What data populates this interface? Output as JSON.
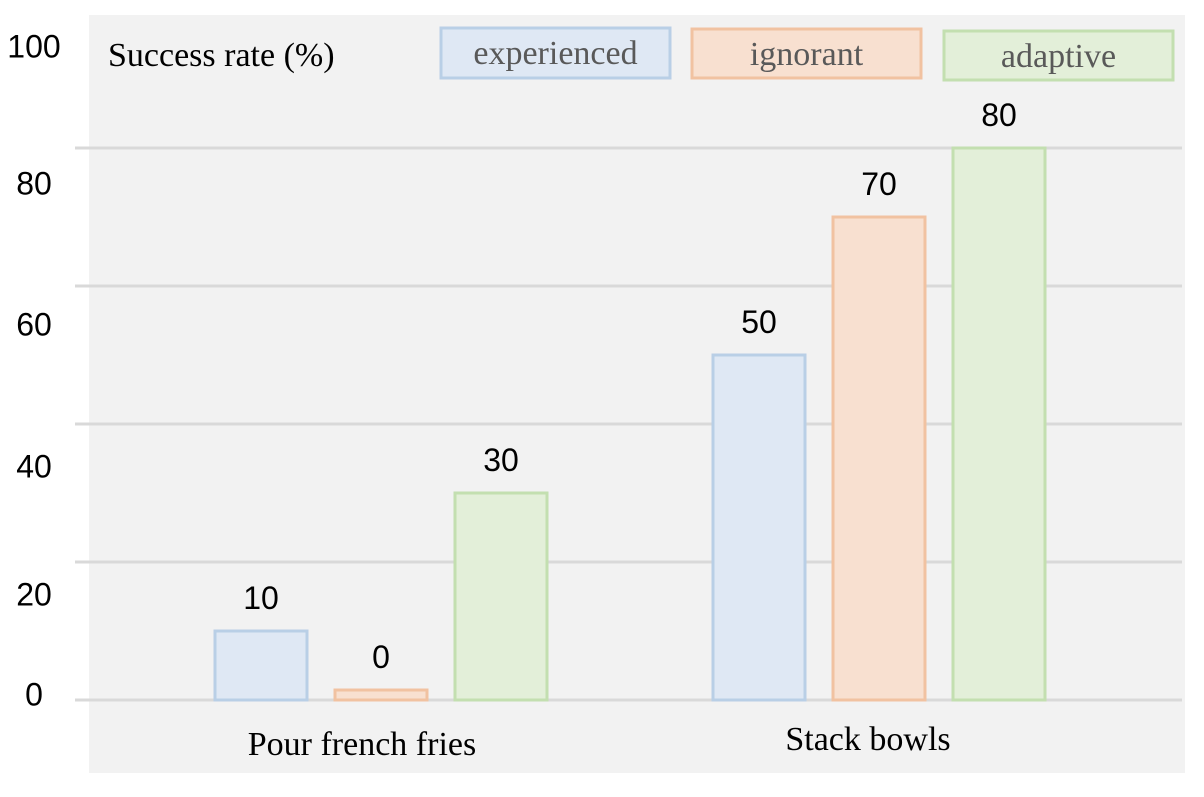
{
  "chart_data": {
    "type": "bar",
    "title": "Success rate (%)",
    "xlabel": "",
    "ylabel": "",
    "categories": [
      "Pour french fries",
      "Stack bowls"
    ],
    "series": [
      {
        "name": "experienced",
        "values": [
          10,
          50
        ],
        "fill": "#dfe8f4",
        "stroke": "#b9cfe6"
      },
      {
        "name": "ignorant",
        "values": [
          0,
          70
        ],
        "fill": "#f8e0d0",
        "stroke": "#f1c2a1"
      },
      {
        "name": "adaptive",
        "values": [
          30,
          80
        ],
        "fill": "#e3efd9",
        "stroke": "#c3dfb0"
      }
    ],
    "data_labels": [
      [
        "10",
        "50"
      ],
      [
        "0",
        "70"
      ],
      [
        "30",
        "80"
      ]
    ],
    "ylim": [
      0,
      100
    ],
    "y_ticks": [
      0,
      20,
      40,
      60,
      80,
      100
    ],
    "grid": true,
    "legend": "top-right",
    "colors": {
      "plot_background": "#f2f2f2",
      "grid": "#d9d9d9",
      "legend_text": "#595959"
    }
  }
}
